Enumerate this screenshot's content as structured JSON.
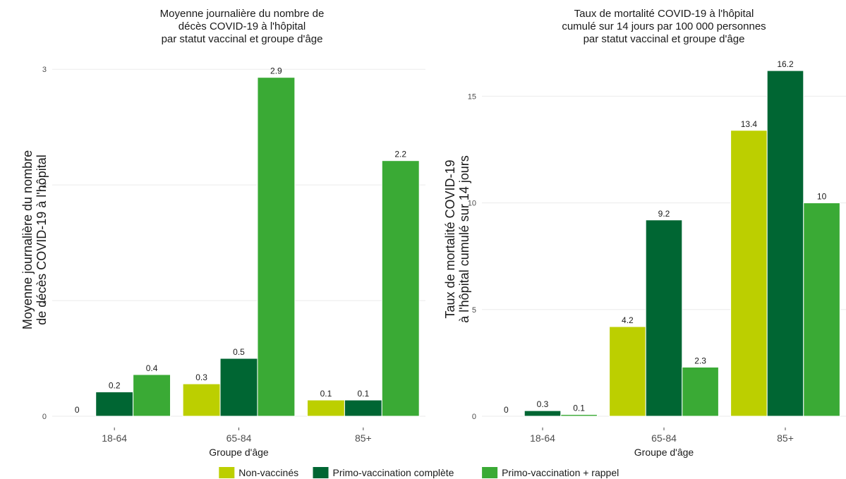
{
  "chart_data": [
    {
      "type": "bar",
      "title_lines": [
        "Moyenne journalière du nombre de",
        "décès COVID-19 à l'hôpital",
        "par statut vaccinal et groupe d'âge"
      ],
      "ylabel_lines": [
        "Moyenne journalière du nombre",
        "de décès COVID-19 à l'hôpital"
      ],
      "xlabel": "Groupe d'âge",
      "categories": [
        "18-64",
        "65-84",
        "85+"
      ],
      "yticks": [
        "0",
        "1",
        "2",
        "3"
      ],
      "ylim": [
        0,
        3.05
      ],
      "grid": true,
      "series": [
        {
          "name": "Non-vaccinés",
          "values": [
            0,
            0.28,
            0.14
          ],
          "labels": [
            "0",
            "0.3",
            "0.1"
          ]
        },
        {
          "name": "Primo-vaccination complète",
          "values": [
            0.21,
            0.5,
            0.14
          ],
          "labels": [
            "0.2",
            "0.5",
            "0.1"
          ]
        },
        {
          "name": "Primo-vaccination + rappel",
          "values": [
            0.36,
            2.93,
            2.21
          ],
          "labels": [
            "0.4",
            "2.9",
            "2.2"
          ]
        }
      ]
    },
    {
      "type": "bar",
      "title_lines": [
        "Taux de mortalité COVID-19 à l'hôpital",
        "cumulé sur 14 jours par 100 000 personnes",
        "par statut vaccinal et groupe d'âge"
      ],
      "ylabel_lines": [
        "Taux de mortalité COVID-19",
        "à l'hôpital cumulé sur 14 jours"
      ],
      "xlabel": "Groupe d'âge",
      "categories": [
        "18-64",
        "65-84",
        "85+"
      ],
      "yticks": [
        "0",
        "5",
        "10",
        "15"
      ],
      "ylim": [
        0,
        16.6
      ],
      "grid": true,
      "series": [
        {
          "name": "Non-vaccinés",
          "values": [
            0,
            4.2,
            13.4
          ],
          "labels": [
            "0",
            "4.2",
            "13.4"
          ]
        },
        {
          "name": "Primo-vaccination complète",
          "values": [
            0.26,
            9.2,
            16.2
          ],
          "labels": [
            "0.3",
            "9.2",
            "16.2"
          ]
        },
        {
          "name": "Primo-vaccination + rappel",
          "values": [
            0.08,
            2.3,
            10
          ],
          "labels": [
            "0.1",
            "2.3",
            "10"
          ]
        }
      ]
    }
  ],
  "legend": {
    "position": "bottom",
    "items": [
      "Non-vaccinés",
      "Primo-vaccination complète",
      "Primo-vaccination + rappel"
    ]
  },
  "colors": {
    "Non-vaccinés": "#bccf00",
    "Primo-vaccination complète": "#006633",
    "Primo-vaccination + rappel": "#3aaa35"
  }
}
